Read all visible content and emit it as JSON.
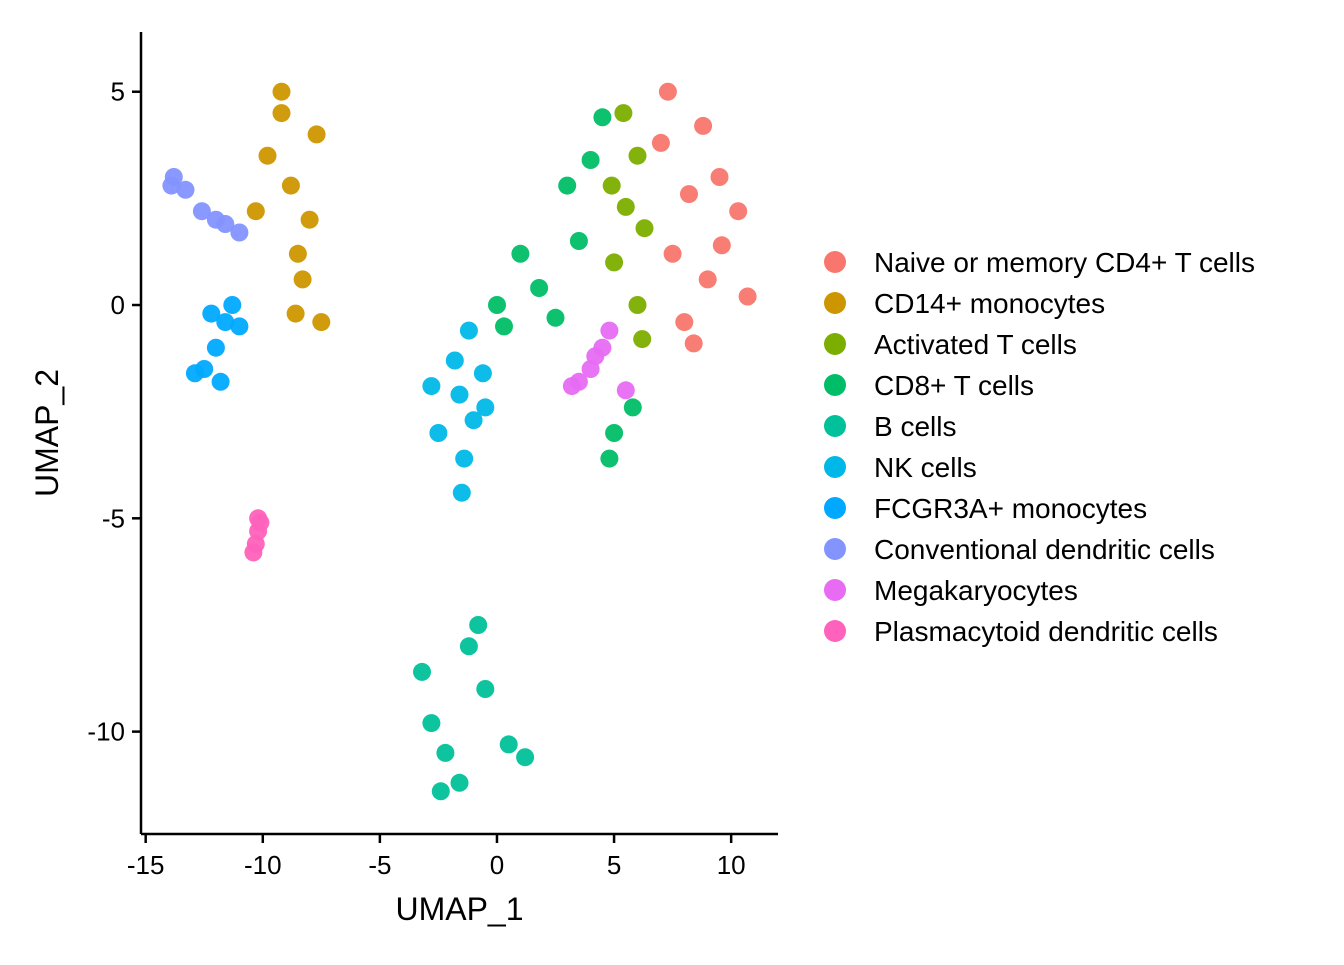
{
  "chart_data": {
    "type": "scatter",
    "title": "",
    "xlabel": "UMAP_1",
    "ylabel": "UMAP_2",
    "xlim": [
      -15.2,
      12.0
    ],
    "ylim": [
      -12.4,
      6.4
    ],
    "xticks": [
      -15,
      -10,
      -5,
      0,
      5,
      10
    ],
    "yticks": [
      5,
      0,
      -5,
      -10
    ],
    "tick_labels_x": [
      "-15",
      "-10",
      "-5",
      "0",
      "5",
      "10"
    ],
    "tick_labels_y": [
      "5",
      "0",
      "-5",
      "-10"
    ],
    "grid": false,
    "legend_position": "right",
    "series": [
      {
        "name": "Naive or memory CD4+ T cells",
        "color": "#F8766D",
        "points": [
          [
            8.2,
            2.6
          ],
          [
            7.5,
            1.2
          ],
          [
            9.5,
            3.0
          ],
          [
            8.8,
            4.2
          ],
          [
            7.0,
            3.8
          ],
          [
            9.0,
            0.6
          ],
          [
            8.0,
            -0.4
          ],
          [
            10.3,
            2.2
          ],
          [
            7.3,
            5.0
          ],
          [
            9.6,
            1.4
          ],
          [
            10.7,
            0.2
          ],
          [
            8.4,
            -0.9
          ]
        ]
      },
      {
        "name": "CD14+ monocytes",
        "color": "#CD9600",
        "points": [
          [
            -8.8,
            2.8
          ],
          [
            -9.2,
            4.5
          ],
          [
            -8.5,
            1.2
          ],
          [
            -8.6,
            -0.2
          ],
          [
            -9.8,
            3.5
          ],
          [
            -8.0,
            2.0
          ],
          [
            -7.5,
            -0.4
          ],
          [
            -9.2,
            5.0
          ],
          [
            -10.3,
            2.2
          ],
          [
            -7.7,
            4.0
          ],
          [
            -8.3,
            0.6
          ]
        ]
      },
      {
        "name": "Activated T cells",
        "color": "#7CAE00",
        "points": [
          [
            5.5,
            2.3
          ],
          [
            5.0,
            1.0
          ],
          [
            6.0,
            3.5
          ],
          [
            6.0,
            0.0
          ],
          [
            6.2,
            -0.8
          ],
          [
            5.4,
            4.5
          ],
          [
            4.9,
            2.8
          ],
          [
            6.3,
            1.8
          ]
        ]
      },
      {
        "name": "CD8+ T cells",
        "color": "#00BE67",
        "points": [
          [
            1.8,
            0.4
          ],
          [
            0.0,
            0.0
          ],
          [
            3.5,
            1.5
          ],
          [
            4.0,
            3.4
          ],
          [
            3.0,
            2.8
          ],
          [
            1.0,
            1.2
          ],
          [
            4.5,
            4.4
          ],
          [
            2.5,
            -0.3
          ],
          [
            0.3,
            -0.5
          ],
          [
            5.0,
            -3.0
          ],
          [
            4.8,
            -3.6
          ],
          [
            5.8,
            -2.4
          ]
        ]
      },
      {
        "name": "B cells",
        "color": "#00C19A",
        "points": [
          [
            -2.2,
            -10.5
          ],
          [
            -1.2,
            -8.0
          ],
          [
            -0.5,
            -9.0
          ],
          [
            0.5,
            -10.3
          ],
          [
            -2.8,
            -9.8
          ],
          [
            -3.2,
            -8.6
          ],
          [
            -1.6,
            -11.2
          ],
          [
            -0.8,
            -7.5
          ],
          [
            -2.4,
            -11.4
          ],
          [
            1.2,
            -10.6
          ]
        ]
      },
      {
        "name": "NK cells",
        "color": "#00B8E7",
        "points": [
          [
            -1.6,
            -2.1
          ],
          [
            -1.8,
            -1.3
          ],
          [
            -1.0,
            -2.7
          ],
          [
            -2.5,
            -3.0
          ],
          [
            -0.6,
            -1.6
          ],
          [
            -1.4,
            -3.6
          ],
          [
            -1.5,
            -4.4
          ],
          [
            -2.8,
            -1.9
          ],
          [
            -1.2,
            -0.6
          ],
          [
            -0.5,
            -2.4
          ]
        ]
      },
      {
        "name": "FCGR3A+ monocytes",
        "color": "#00A9FF",
        "points": [
          [
            -12.0,
            -1.0
          ],
          [
            -11.6,
            -0.4
          ],
          [
            -12.5,
            -1.5
          ],
          [
            -11.3,
            0.0
          ],
          [
            -12.9,
            -1.6
          ],
          [
            -11.8,
            -1.8
          ],
          [
            -11.0,
            -0.5
          ],
          [
            -12.2,
            -0.2
          ]
        ]
      },
      {
        "name": "Conventional dendritic cells",
        "color": "#8494FF",
        "points": [
          [
            -13.8,
            3.0
          ],
          [
            -13.3,
            2.7
          ],
          [
            -12.6,
            2.2
          ],
          [
            -11.6,
            1.9
          ],
          [
            -11.0,
            1.7
          ],
          [
            -13.9,
            2.8
          ],
          [
            -12.0,
            2.0
          ]
        ]
      },
      {
        "name": "Megakaryocytes",
        "color": "#E76BF3",
        "points": [
          [
            4.0,
            -1.5
          ],
          [
            4.5,
            -1.0
          ],
          [
            3.5,
            -1.8
          ],
          [
            4.8,
            -0.6
          ],
          [
            3.2,
            -1.9
          ],
          [
            4.2,
            -1.2
          ],
          [
            5.5,
            -2.0
          ]
        ]
      },
      {
        "name": "Plasmacytoid dendritic cells",
        "color": "#FF62BC",
        "points": [
          [
            -10.2,
            -5.3
          ],
          [
            -10.3,
            -5.6
          ],
          [
            -10.1,
            -5.1
          ],
          [
            -10.4,
            -5.8
          ],
          [
            -10.2,
            -5.0
          ]
        ]
      }
    ]
  }
}
